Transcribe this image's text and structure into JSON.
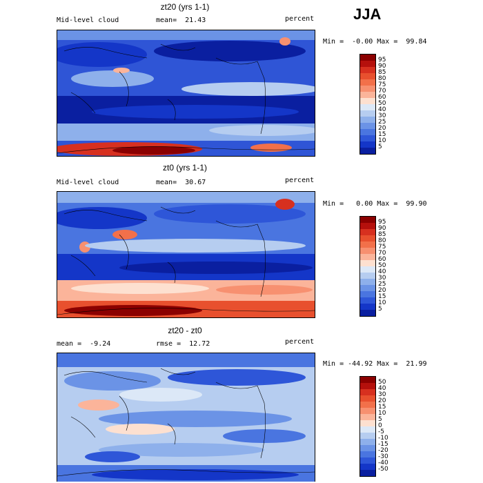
{
  "season": "JJA",
  "panels": [
    {
      "title": "zt20 (yrs 1-1)",
      "left_label": "Mid-level cloud",
      "stat_label": "mean=  21.43",
      "units": "percent",
      "minmax": "Min =  -0.00 Max =  99.84",
      "colorbar": {
        "labels": [
          "95",
          "90",
          "85",
          "80",
          "75",
          "70",
          "60",
          "50",
          "40",
          "30",
          "25",
          "20",
          "15",
          "10",
          "5"
        ],
        "colors": [
          "#8b0000",
          "#b5100c",
          "#d7301f",
          "#e8502e",
          "#f2704a",
          "#f79070",
          "#fbb49a",
          "#fde0d0",
          "#dce8f7",
          "#b6cdf0",
          "#8eb0eb",
          "#6b93e6",
          "#4a75e0",
          "#2e56d8",
          "#1436c8",
          "#0a1fa0"
        ]
      }
    },
    {
      "title": "zt0 (yrs 1-1)",
      "left_label": "Mid-level cloud",
      "stat_label": "mean=  30.67",
      "units": "percent",
      "minmax": "Min =   0.00 Max =  99.90",
      "colorbar": {
        "labels": [
          "95",
          "90",
          "85",
          "80",
          "75",
          "70",
          "60",
          "50",
          "40",
          "30",
          "25",
          "20",
          "15",
          "10",
          "5"
        ],
        "colors": [
          "#8b0000",
          "#b5100c",
          "#d7301f",
          "#e8502e",
          "#f2704a",
          "#f79070",
          "#fbb49a",
          "#fde0d0",
          "#dce8f7",
          "#b6cdf0",
          "#8eb0eb",
          "#6b93e6",
          "#4a75e0",
          "#2e56d8",
          "#1436c8",
          "#0a1fa0"
        ]
      }
    },
    {
      "title": "zt20 - zt0",
      "left_label": "mean =  -9.24",
      "stat_label": "rmse =  12.72",
      "units": "percent",
      "minmax": "Min = -44.92 Max =  21.99",
      "colorbar": {
        "labels": [
          "50",
          "40",
          "30",
          "20",
          "15",
          "10",
          "5",
          "0",
          "-5",
          "-10",
          "-15",
          "-20",
          "-30",
          "-40",
          "-50"
        ],
        "colors": [
          "#8b0000",
          "#b5100c",
          "#d7301f",
          "#e8502e",
          "#f2704a",
          "#f79070",
          "#fbb49a",
          "#fde0d0",
          "#dce8f7",
          "#b6cdf0",
          "#8eb0eb",
          "#6b93e6",
          "#4a75e0",
          "#2e56d8",
          "#1436c8",
          "#0a1fa0"
        ]
      }
    }
  ]
}
